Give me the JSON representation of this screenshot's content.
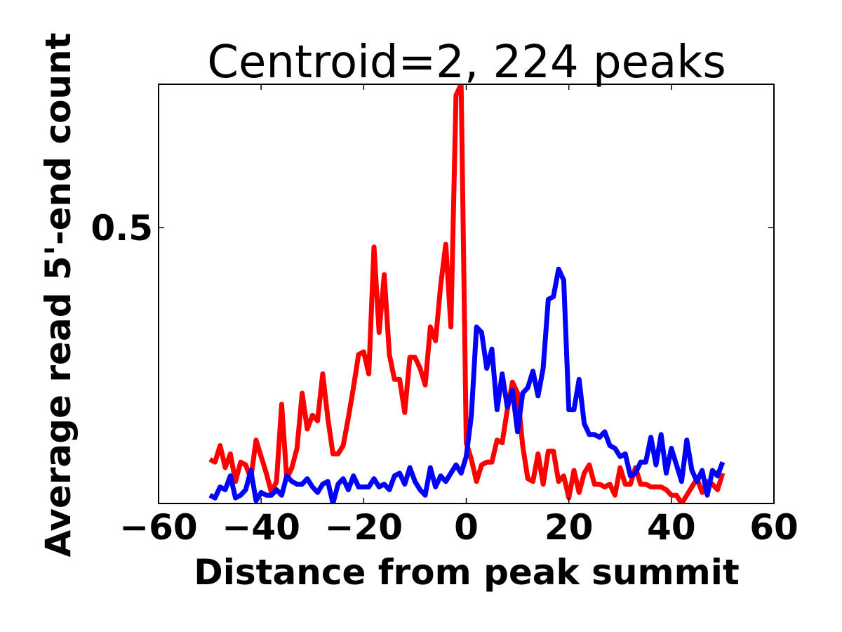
{
  "chart_data": {
    "type": "line",
    "title": "Centroid=2, 224 peaks",
    "xlabel": "Distance from peak summit",
    "ylabel": "Average read 5'-end count",
    "xlim": [
      -60,
      60
    ],
    "ylim": [
      0.0,
      0.76
    ],
    "xticks": [
      -60,
      -40,
      -20,
      0,
      20,
      40,
      60
    ],
    "xtick_labels": [
      "−60",
      "−40",
      "−20",
      "0",
      "20",
      "40",
      "60"
    ],
    "yticks": [
      0.5
    ],
    "ytick_labels": [
      "0.5"
    ],
    "grid": false,
    "legend": "none",
    "x": [
      -50,
      -49,
      -48,
      -47,
      -46,
      -45,
      -44,
      -43,
      -42,
      -41,
      -40,
      -39,
      -38,
      -37,
      -36,
      -35,
      -34,
      -33,
      -32,
      -31,
      -30,
      -29,
      -28,
      -27,
      -26,
      -25,
      -24,
      -23,
      -22,
      -21,
      -20,
      -19,
      -18,
      -17,
      -16,
      -15,
      -14,
      -13,
      -12,
      -11,
      -10,
      -9,
      -8,
      -7,
      -6,
      -5,
      -4,
      -3,
      -2,
      -1,
      0,
      1,
      2,
      3,
      4,
      5,
      6,
      7,
      8,
      9,
      10,
      11,
      12,
      13,
      14,
      15,
      16,
      17,
      18,
      19,
      20,
      21,
      22,
      23,
      24,
      25,
      26,
      27,
      28,
      29,
      30,
      31,
      32,
      33,
      34,
      35,
      36,
      37,
      38,
      39,
      40,
      41,
      42,
      43,
      44,
      45,
      46,
      47,
      48,
      49,
      50
    ],
    "series": [
      {
        "color": "#ff0000",
        "values": [
          0.08,
          0.075,
          0.105,
          0.065,
          0.09,
          0.04,
          0.075,
          0.07,
          0.045,
          0.115,
          0.085,
          0.055,
          0.02,
          0.04,
          0.18,
          0.045,
          0.065,
          0.1,
          0.2,
          0.135,
          0.16,
          0.15,
          0.235,
          0.155,
          0.09,
          0.09,
          0.105,
          0.155,
          0.21,
          0.27,
          0.275,
          0.235,
          0.465,
          0.31,
          0.415,
          0.27,
          0.225,
          0.225,
          0.165,
          0.265,
          0.265,
          0.245,
          0.215,
          0.32,
          0.295,
          0.395,
          0.47,
          0.32,
          0.74,
          0.76,
          0.11,
          0.08,
          0.04,
          0.07,
          0.075,
          0.075,
          0.115,
          0.11,
          0.17,
          0.22,
          0.2,
          0.105,
          0.045,
          0.04,
          0.09,
          0.035,
          0.095,
          0.095,
          0.04,
          0.05,
          0.01,
          0.06,
          0.02,
          0.055,
          0.07,
          0.035,
          0.035,
          0.03,
          0.035,
          0.015,
          0.065,
          0.035,
          0.035,
          0.065,
          0.035,
          0.035,
          0.03,
          0.03,
          0.03,
          0.025,
          0.015,
          0.015,
          0.0,
          0.015,
          0.03,
          0.045,
          0.02,
          0.04,
          0.035,
          0.025,
          0.055
        ]
      },
      {
        "color": "#0000ff",
        "values": [
          0.015,
          0.01,
          0.03,
          0.025,
          0.05,
          0.01,
          0.015,
          0.025,
          0.06,
          0.005,
          0.02,
          0.015,
          0.015,
          0.025,
          0.015,
          0.05,
          0.04,
          0.035,
          0.035,
          0.045,
          0.03,
          0.02,
          0.035,
          0.04,
          0.0,
          0.035,
          0.045,
          0.025,
          0.05,
          0.03,
          0.03,
          0.03,
          0.045,
          0.03,
          0.035,
          0.025,
          0.05,
          0.055,
          0.035,
          0.065,
          0.04,
          0.025,
          0.015,
          0.065,
          0.03,
          0.05,
          0.04,
          0.055,
          0.07,
          0.055,
          0.085,
          0.16,
          0.32,
          0.31,
          0.245,
          0.28,
          0.17,
          0.235,
          0.175,
          0.205,
          0.13,
          0.2,
          0.21,
          0.24,
          0.195,
          0.245,
          0.37,
          0.375,
          0.425,
          0.405,
          0.17,
          0.17,
          0.225,
          0.145,
          0.125,
          0.125,
          0.12,
          0.13,
          0.105,
          0.1,
          0.085,
          0.09,
          0.05,
          0.055,
          0.075,
          0.075,
          0.12,
          0.07,
          0.125,
          0.055,
          0.1,
          0.07,
          0.04,
          0.115,
          0.06,
          0.04,
          0.06,
          0.015,
          0.06,
          0.05,
          0.075
        ]
      }
    ]
  }
}
